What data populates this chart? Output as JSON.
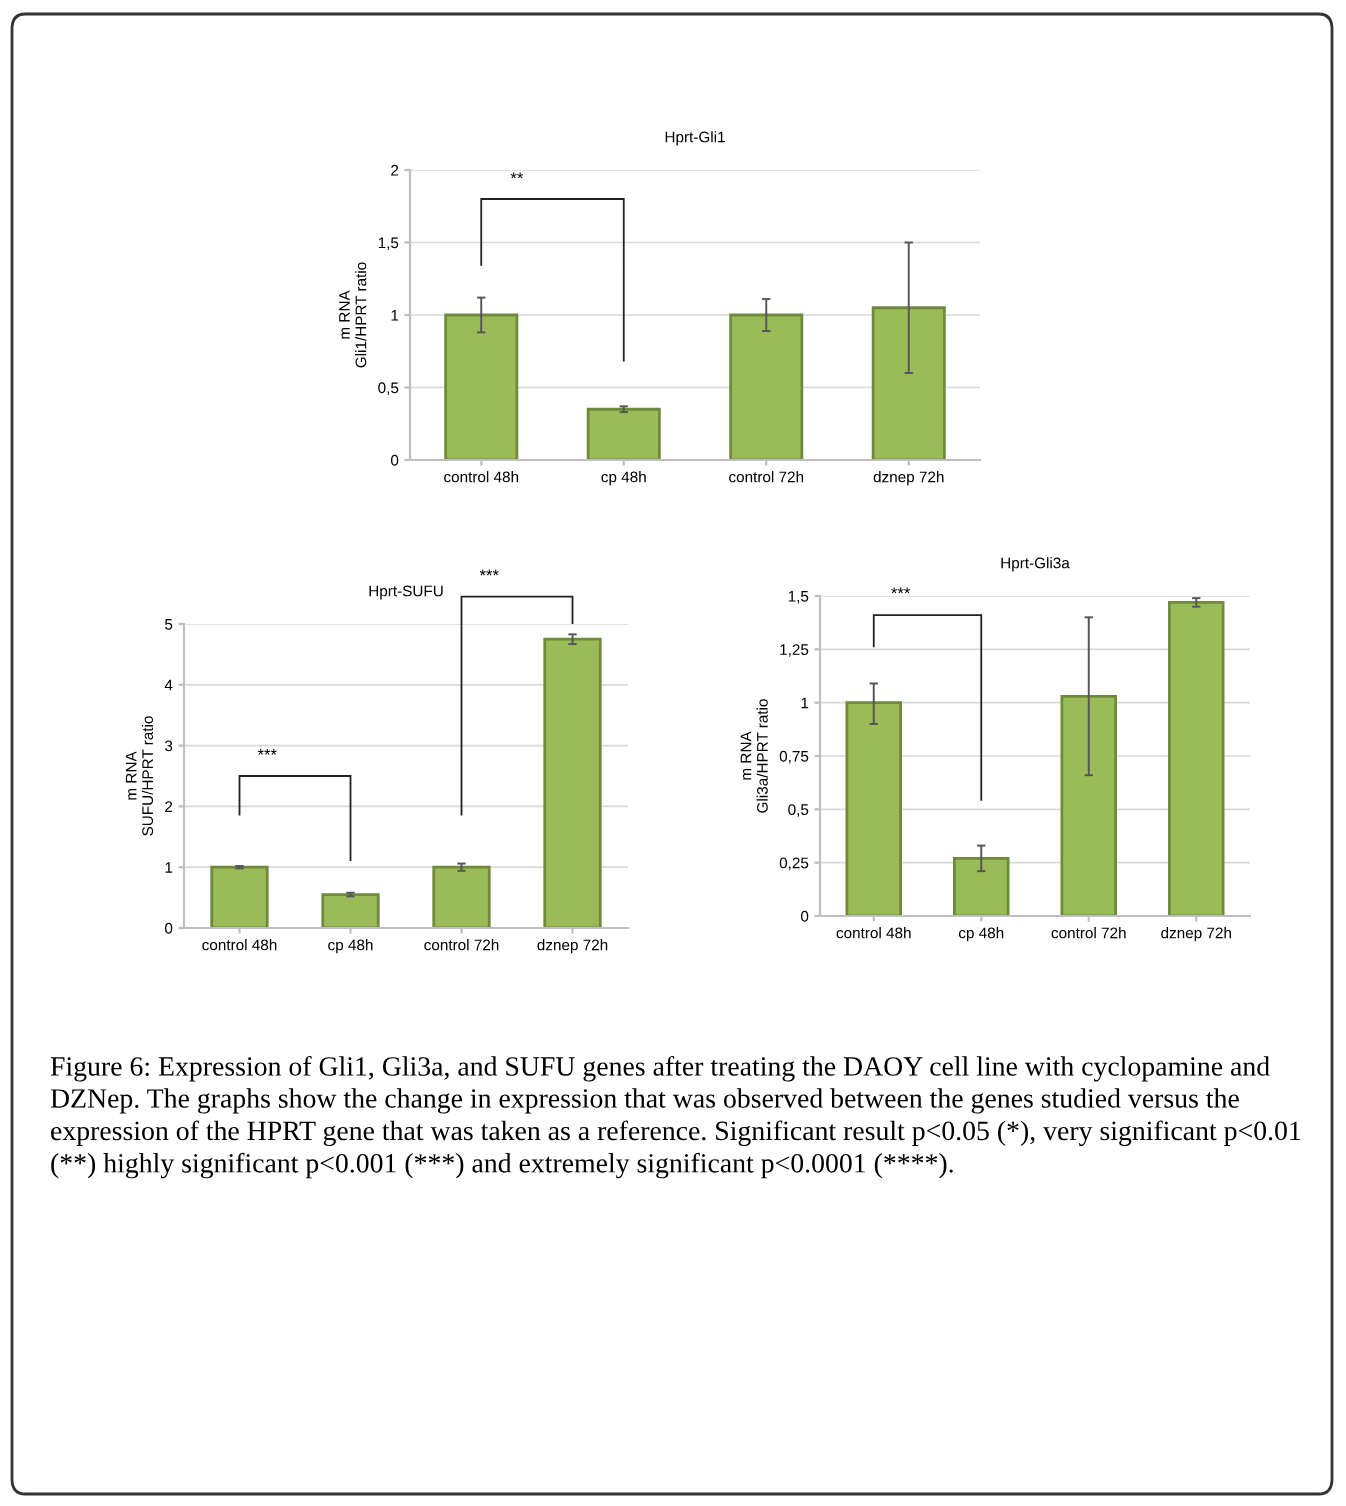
{
  "chart_data": [
    {
      "type": "bar",
      "title": "Hprt-Gli1",
      "ylabel": "m RNA\nGli1/HPRT ratio",
      "categories": [
        "control 48h",
        "cp 48h",
        "control 72h",
        "dznep 72h"
      ],
      "values": [
        1.0,
        0.35,
        1.0,
        1.05
      ],
      "errors": [
        [
          0.88,
          1.12
        ],
        [
          0.33,
          0.37
        ],
        [
          0.89,
          1.11
        ],
        [
          0.6,
          1.5
        ]
      ],
      "color": "#9bbb59",
      "ylim": [
        0,
        2
      ],
      "yticks": [
        0,
        {
          "value": 0.5,
          "label": "0,5"
        },
        1,
        {
          "value": 1.5,
          "label": "1,5"
        },
        2
      ],
      "grid": "y",
      "annotations": [
        "**",
        "Figure 6: Expression of Gli1, Gli3a, and SUFU genes after treating the DAOY cell line with cyclopamine and DZNep. The graphs show the change in expression that was observed between the genes studied versus the expression of the HPRT gene that was taken as a reference. Significant result p<0.05 (*), very significant p<0.01 (**) highly significant p<0.001 (***) and extremely significant p<0.0001 (****)."
      ]
    },
    {
      "type": "bar",
      "title": "Hprt-SUFU",
      "ylabel": "m RNA\nSUFU/HPRT ratio",
      "categories": [
        "control 48h",
        "cp 48h",
        "control 72h",
        "dznep 72h"
      ],
      "values": [
        1.0,
        0.55,
        1.0,
        4.75
      ],
      "errors": [
        [
          0.98,
          1.02
        ],
        [
          0.52,
          0.58
        ],
        [
          0.94,
          1.06
        ],
        [
          4.67,
          4.83
        ]
      ],
      "color": "#9bbb59",
      "ylim": [
        0,
        5
      ],
      "yticks": [
        0,
        1,
        2,
        3,
        4,
        5
      ],
      "grid": "y",
      "annotations": [
        "***",
        "***"
      ]
    },
    {
      "type": "bar",
      "title": "Hprt-Gli3a",
      "ylabel": "m RNA\nGli3a/HPRT ratio",
      "categories": [
        "control 48h",
        "cp 48h",
        "control 72h",
        "dznep 72h"
      ],
      "values": [
        1.0,
        0.27,
        1.03,
        1.47
      ],
      "errors": [
        [
          0.9,
          1.09
        ],
        [
          0.21,
          0.33
        ],
        [
          0.66,
          1.4
        ],
        [
          1.45,
          1.49
        ]
      ],
      "color": "#9bbb59",
      "ylim": [
        0,
        1.5
      ],
      "yticks": [
        0,
        {
          "value": 0.25,
          "label": "0,25"
        },
        {
          "value": 0.5,
          "label": "0,5"
        },
        {
          "value": 0.75,
          "label": "0,75"
        },
        1,
        {
          "value": 1.25,
          "label": "1,25"
        },
        {
          "value": 1.5,
          "label": "1,5"
        }
      ],
      "grid": "y",
      "annotations": [
        "***"
      ]
    }
  ]
}
